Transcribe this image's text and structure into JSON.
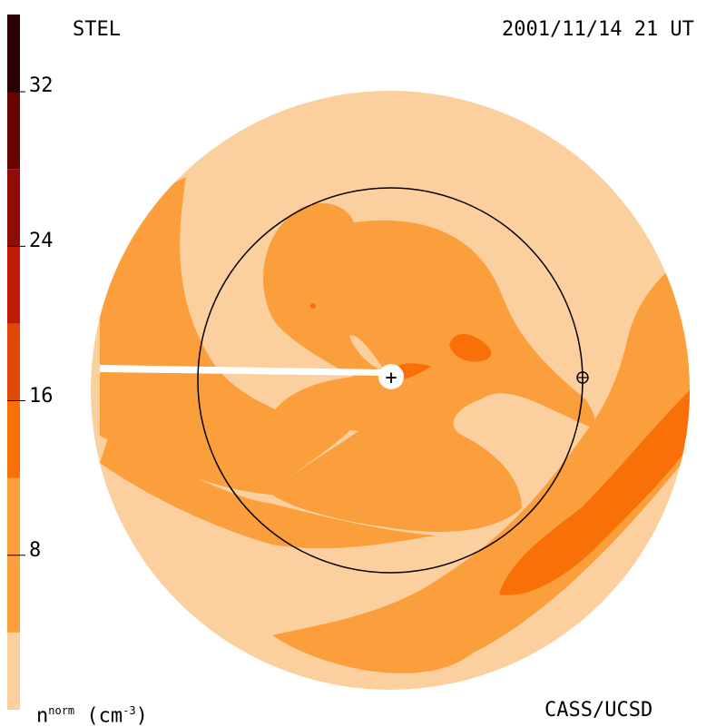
{
  "header": {
    "instrument": "STEL",
    "timestamp": "2001/11/14 21 UT"
  },
  "footer": {
    "quantity": "n",
    "quantity_sup": "norm",
    "unit_open": " (cm",
    "unit_sup": "-3",
    "unit_close": ")",
    "credit": "CASS/UCSD"
  },
  "colorbar": {
    "range": [
      0,
      36
    ],
    "ticks": [
      "8",
      "16",
      "24",
      "32"
    ],
    "tick_values": [
      8,
      16,
      24,
      32
    ],
    "bands": [
      {
        "from": 0,
        "to": 4,
        "color": "#fccf9e"
      },
      {
        "from": 4,
        "to": 12,
        "color": "#fb9e3c"
      },
      {
        "from": 12,
        "to": 16,
        "color": "#f96f08"
      },
      {
        "from": 16,
        "to": 20,
        "color": "#e04808"
      },
      {
        "from": 20,
        "to": 24,
        "color": "#c01a08"
      },
      {
        "from": 24,
        "to": 28,
        "color": "#900c04"
      },
      {
        "from": 28,
        "to": 32,
        "color": "#680400"
      },
      {
        "from": 32,
        "to": 36,
        "color": "#2a0000"
      }
    ]
  },
  "colors": {
    "low": "#fccf9e",
    "mid": "#fb9e3c",
    "high": "#f96f08",
    "orbit": "#000000"
  },
  "map": {
    "sun_symbol": "+",
    "earth_symbol": "⊕"
  }
}
